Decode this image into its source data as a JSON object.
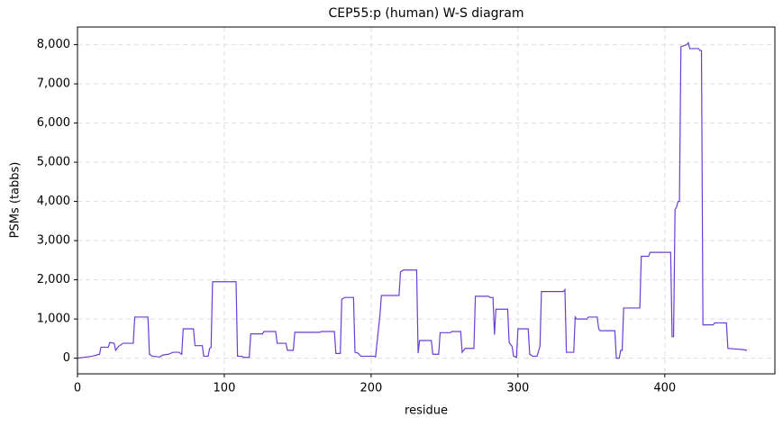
{
  "chart_data": {
    "type": "line",
    "title": "CEP55:p (human) W-S diagram",
    "xlabel": "residue",
    "ylabel": "PSMs (tabbs)",
    "x": [
      0,
      10,
      15,
      16,
      21,
      22,
      25,
      26,
      28,
      31,
      38,
      39,
      48,
      49,
      51,
      56,
      58,
      62,
      65,
      69,
      71,
      72,
      79,
      80,
      85,
      86,
      89,
      90,
      91,
      92,
      108,
      109,
      112,
      113,
      117,
      118,
      126,
      127,
      135,
      136,
      142,
      143,
      147,
      148,
      165,
      166,
      175,
      176,
      179,
      180,
      182,
      188,
      189,
      191,
      193,
      202,
      203,
      206,
      207,
      219,
      220,
      222,
      231,
      232,
      233,
      241,
      242,
      246,
      247,
      254,
      255,
      261,
      262,
      264,
      270,
      271,
      280,
      281,
      283,
      284,
      285,
      293,
      294,
      296,
      297,
      299,
      300,
      307,
      308,
      310,
      313,
      315,
      316,
      331,
      332,
      333,
      338,
      339,
      340,
      347,
      348,
      354,
      355,
      356,
      366,
      367,
      369,
      370,
      371,
      372,
      383,
      384,
      389,
      390,
      404,
      405,
      406,
      407,
      408,
      409,
      410,
      411,
      415,
      416,
      417,
      423,
      424,
      425,
      426,
      433,
      434,
      442,
      443,
      453,
      456
    ],
    "values": [
      0,
      50,
      100,
      280,
      280,
      400,
      380,
      200,
      300,
      380,
      380,
      1050,
      1050,
      100,
      50,
      30,
      80,
      100,
      150,
      150,
      100,
      750,
      750,
      320,
      320,
      50,
      50,
      250,
      270,
      1950,
      1950,
      50,
      50,
      20,
      20,
      620,
      620,
      680,
      680,
      380,
      380,
      200,
      200,
      660,
      660,
      680,
      680,
      120,
      120,
      1500,
      1550,
      1550,
      150,
      130,
      50,
      50,
      30,
      1100,
      1600,
      1600,
      2200,
      2250,
      2250,
      130,
      450,
      450,
      100,
      100,
      650,
      650,
      680,
      680,
      150,
      250,
      250,
      1580,
      1580,
      1550,
      1550,
      600,
      1250,
      1250,
      400,
      300,
      50,
      20,
      750,
      750,
      100,
      50,
      50,
      300,
      1700,
      1700,
      1750,
      150,
      150,
      1050,
      1000,
      1000,
      1050,
      1050,
      750,
      700,
      700,
      0,
      0,
      200,
      200,
      1280,
      1280,
      2600,
      2600,
      2700,
      2700,
      550,
      550,
      3800,
      3850,
      4000,
      4000,
      7950,
      8000,
      8050,
      7900,
      7900,
      7850,
      7850,
      850,
      850,
      900,
      900,
      250,
      220,
      200
    ],
    "color": "#6a3fd0",
    "xlim": [
      0,
      475
    ],
    "xticks": [
      0,
      100,
      200,
      300,
      400
    ],
    "ylim": [
      -400,
      8450
    ],
    "yticks": [
      0,
      {
        "value": 1000,
        "label": "1,000"
      },
      {
        "value": 2000,
        "label": "2,000"
      },
      {
        "value": 3000,
        "label": "3,000"
      },
      {
        "value": 4000,
        "label": "4,000"
      },
      {
        "value": 5000,
        "label": "5,000"
      },
      {
        "value": 6000,
        "label": "6,000"
      },
      {
        "value": 7000,
        "label": "7,000"
      },
      {
        "value": 8000,
        "label": "8,000"
      }
    ],
    "grid": true
  }
}
